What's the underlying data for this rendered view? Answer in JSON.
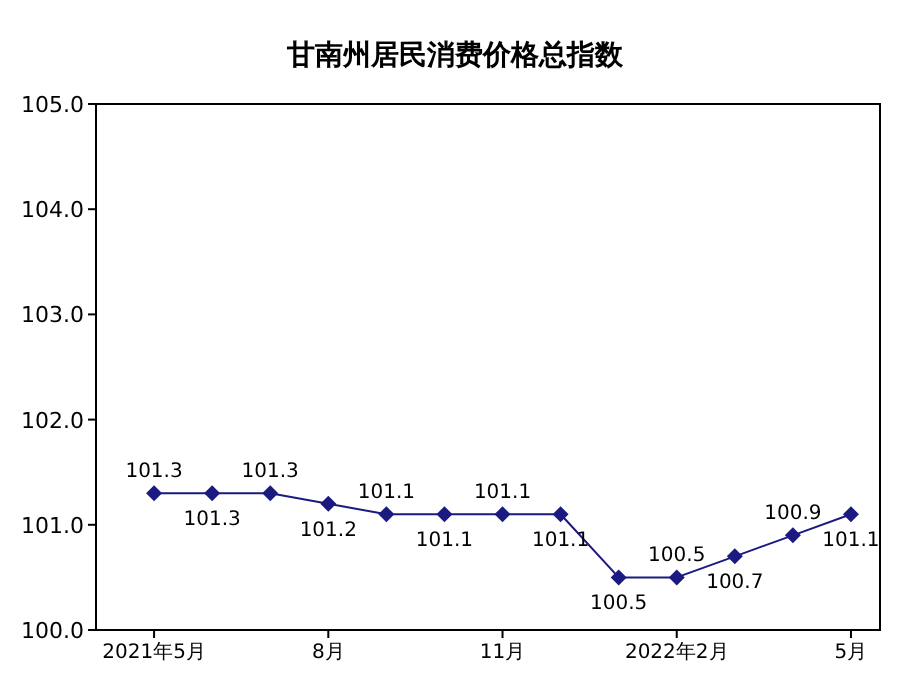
{
  "chart_data": {
    "type": "line",
    "title": "甘南州居民消费价格总指数",
    "categories": [
      "2021年5月",
      null,
      null,
      "8月",
      null,
      null,
      "11月",
      null,
      null,
      "2022年2月",
      null,
      null,
      "5月"
    ],
    "values": [
      101.3,
      101.3,
      101.3,
      101.2,
      101.1,
      101.1,
      101.1,
      101.1,
      100.5,
      100.5,
      100.7,
      100.9,
      101.1
    ],
    "color": "#1a1a80",
    "marker": "diamond",
    "data_labels": true,
    "grid": false,
    "ylim": [
      100,
      105
    ],
    "yticks": [
      {
        "value": 100,
        "label": "100.0"
      },
      {
        "value": 101,
        "label": "101.0"
      },
      {
        "value": 102,
        "label": "102.0"
      },
      {
        "value": 103,
        "label": "103.0"
      },
      {
        "value": 104,
        "label": "104.0"
      },
      {
        "value": 105,
        "label": "105.0"
      }
    ]
  }
}
